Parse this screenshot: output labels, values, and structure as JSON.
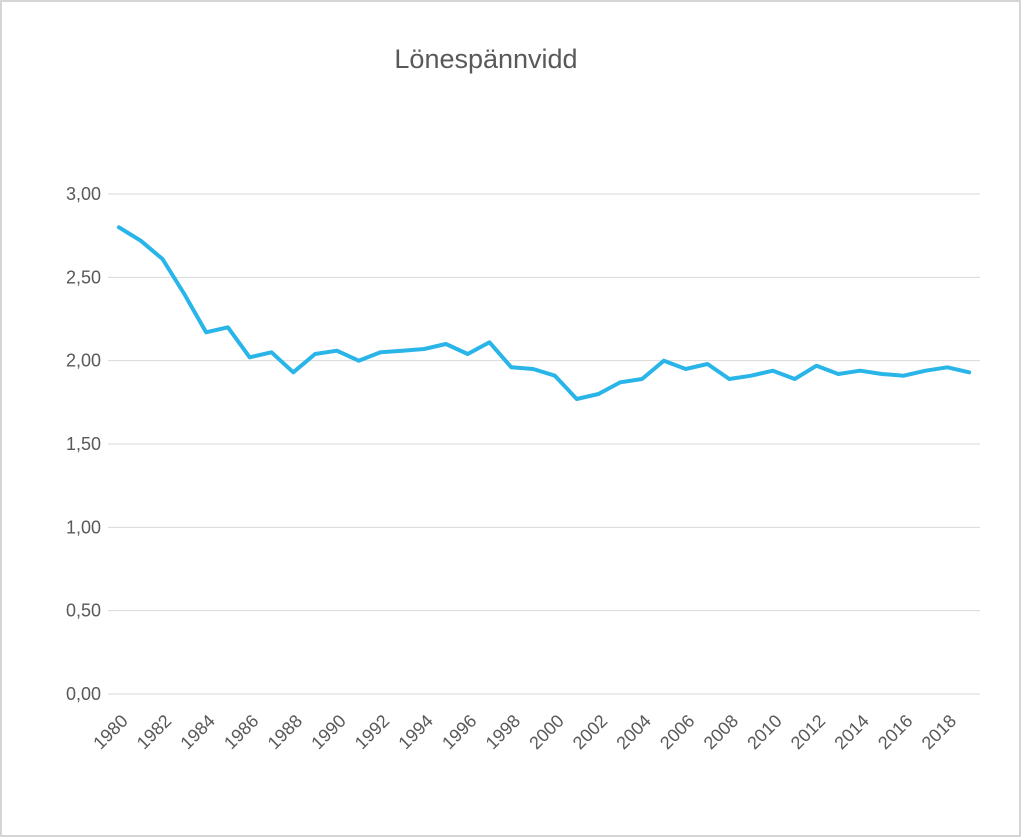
{
  "chart": {
    "background_color": "#ffffff",
    "frame_border_color": "#d7d4d4",
    "gridline_color": "#d9d9d9",
    "text_color": "#595959",
    "series_color": "#29b5e8"
  },
  "chart_data": {
    "type": "line",
    "title": "Lönespännvidd",
    "xlabel": "",
    "ylabel": "",
    "legend": "none",
    "grid": "horizontal",
    "decimal_separator": ",",
    "ylim": [
      0,
      3
    ],
    "ytick_step": 0.5,
    "yticks": [
      {
        "value": 0.0,
        "label": "0,00"
      },
      {
        "value": 0.5,
        "label": "0,50"
      },
      {
        "value": 1.0,
        "label": "1,00"
      },
      {
        "value": 1.5,
        "label": "1,50"
      },
      {
        "value": 2.0,
        "label": "2,00"
      },
      {
        "value": 2.5,
        "label": "2,50"
      },
      {
        "value": 3.0,
        "label": "3,00"
      }
    ],
    "xtick_labels": [
      "1980",
      "1982",
      "1984",
      "1986",
      "1988",
      "1990",
      "1992",
      "1994",
      "1996",
      "1998",
      "2000",
      "2002",
      "2004",
      "2006",
      "2008",
      "2010",
      "2012",
      "2014",
      "2016",
      "2018"
    ],
    "x": [
      1980,
      1981,
      1982,
      1983,
      1984,
      1985,
      1986,
      1987,
      1988,
      1989,
      1990,
      1991,
      1992,
      1993,
      1994,
      1995,
      1996,
      1997,
      1998,
      1999,
      2000,
      2001,
      2002,
      2003,
      2004,
      2005,
      2006,
      2007,
      2008,
      2009,
      2010,
      2011,
      2012,
      2013,
      2014,
      2015,
      2016,
      2017,
      2018,
      2019
    ],
    "values": [
      2.8,
      2.72,
      2.61,
      2.4,
      2.17,
      2.2,
      2.02,
      2.05,
      1.93,
      2.04,
      2.06,
      2.0,
      2.05,
      2.06,
      2.07,
      2.1,
      2.04,
      2.11,
      1.96,
      1.95,
      1.91,
      1.77,
      1.8,
      1.87,
      1.89,
      2.0,
      1.95,
      1.98,
      1.89,
      1.91,
      1.94,
      1.89,
      1.97,
      1.92,
      1.94,
      1.92,
      1.91,
      1.94,
      1.96,
      1.93
    ],
    "series": [
      {
        "name": "Lönespännvidd",
        "color": "#29b5e8"
      }
    ]
  }
}
